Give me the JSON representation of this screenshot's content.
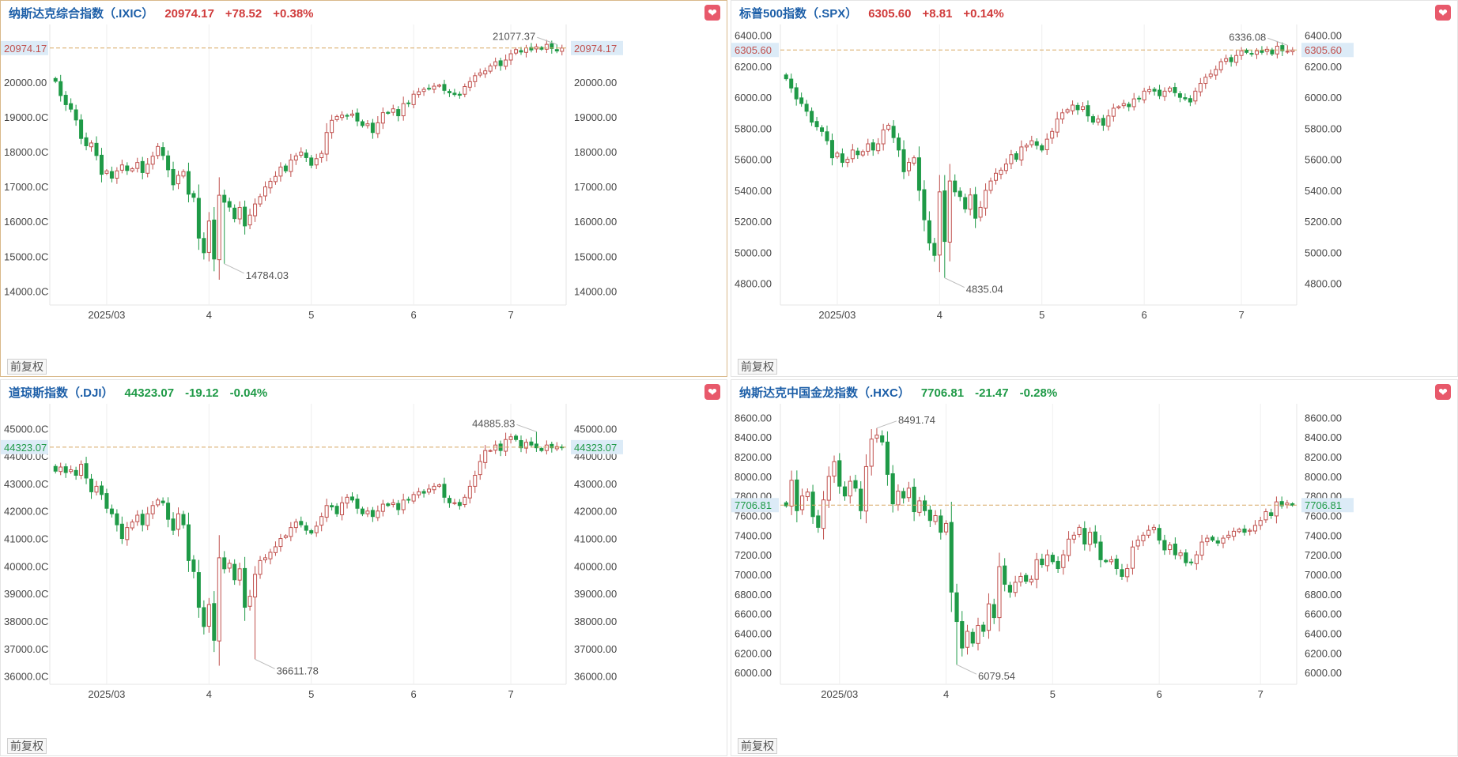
{
  "common": {
    "fuquan_label": "前复权"
  },
  "colors": {
    "up": "#c0504d",
    "down": "#1f9a47",
    "title": "#1d5fa8",
    "refline": "#d8a863"
  },
  "chart_data": [
    {
      "id": "ixic",
      "type": "candlestick",
      "name": "纳斯达克综合指数（.IXIC）",
      "price": "20974.17",
      "change": "+78.52",
      "pct": "+0.38%",
      "direction": "up",
      "last": 20974.17,
      "last_label": "20974.17",
      "ymin": 13600,
      "ymax": 21650,
      "yticks": [
        14000,
        15000,
        16000,
        17000,
        18000,
        19000,
        20000
      ],
      "yleft_labels": [
        "14000.0C",
        "15000.0C",
        "16000.0C",
        "17000.0C",
        "18000.0C",
        "19000.0C",
        "20000.00"
      ],
      "yright_labels": [
        "14000.00",
        "15000.00",
        "16000.00",
        "17000.00",
        "18000.00",
        "19000.00",
        "20000.00"
      ],
      "xlabels": [
        {
          "label": "2025/03",
          "idx": 10
        },
        {
          "label": "4",
          "idx": 30
        },
        {
          "label": "5",
          "idx": 50
        },
        {
          "label": "6",
          "idx": 70
        },
        {
          "label": "7",
          "idx": 89
        }
      ],
      "high_label": "21077.37",
      "high_value": 21077.37,
      "high_idx": 98,
      "low_label": "14784.03",
      "low_value": 14784.03,
      "low_idx": 33,
      "closes": [
        20020,
        19610,
        19350,
        19220,
        18910,
        18380,
        18170,
        18250,
        17890,
        17350,
        17450,
        17240,
        17450,
        17620,
        17460,
        17510,
        17690,
        17400,
        17640,
        17870,
        18150,
        17890,
        17480,
        17050,
        17320,
        17430,
        16780,
        16690,
        15520,
        15100,
        16010,
        14920,
        16750,
        16550,
        16410,
        16080,
        16400,
        15870,
        16180,
        16500,
        16710,
        16990,
        17150,
        17290,
        17560,
        17450,
        17760,
        17880,
        17990,
        17830,
        17610,
        17800,
        17950,
        18550,
        18900,
        19010,
        19050,
        19030,
        19080,
        18880,
        18750,
        18800,
        18550,
        18830,
        19120,
        19100,
        19230,
        19030,
        19380,
        19380,
        19650,
        19720,
        19790,
        19810,
        19880,
        19910,
        19760,
        19690,
        19640,
        19620,
        19870,
        20010,
        20180,
        20260,
        20320,
        20460,
        20580,
        20470,
        20630,
        20810,
        20930,
        20860,
        20980,
        20920,
        21010,
        20940,
        21080,
        20960,
        20890,
        20974
      ]
    },
    {
      "id": "spx",
      "type": "candlestick",
      "name": "标普500指数（.SPX）",
      "price": "6305.60",
      "change": "+8.81",
      "pct": "+0.14%",
      "direction": "up",
      "last": 6305.6,
      "last_label": "6305.60",
      "ymin": 4660,
      "ymax": 6470,
      "yticks": [
        4800,
        5000,
        5200,
        5400,
        5600,
        5800,
        6000,
        6200,
        6400
      ],
      "yleft_labels": [
        "4800.00",
        "5000.00",
        "5200.00",
        "5400.00",
        "5600.00",
        "5800.00",
        "6000.00",
        "6200.00",
        "6400.00"
      ],
      "yright_labels": [
        "4800.00",
        "5000.00",
        "5200.00",
        "5400.00",
        "5600.00",
        "5800.00",
        "6000.00",
        "6200.00",
        "6400.00"
      ],
      "xlabels": [
        {
          "label": "2025/03",
          "idx": 10
        },
        {
          "label": "4",
          "idx": 30
        },
        {
          "label": "5",
          "idx": 50
        },
        {
          "label": "6",
          "idx": 70
        },
        {
          "label": "7",
          "idx": 89
        }
      ],
      "high_label": "6336.08",
      "high_value": 6336.08,
      "high_idx": 98,
      "low_label": "4835.04",
      "low_value": 4835.04,
      "low_idx": 31,
      "closes": [
        6120,
        6060,
        5990,
        5960,
        5910,
        5840,
        5810,
        5780,
        5720,
        5610,
        5640,
        5580,
        5600,
        5660,
        5630,
        5650,
        5700,
        5660,
        5700,
        5790,
        5820,
        5740,
        5660,
        5520,
        5580,
        5610,
        5400,
        5210,
        5060,
        4980,
        5390,
        5070,
        5460,
        5390,
        5360,
        5280,
        5370,
        5220,
        5290,
        5400,
        5460,
        5510,
        5530,
        5570,
        5630,
        5600,
        5680,
        5690,
        5720,
        5690,
        5660,
        5730,
        5780,
        5860,
        5900,
        5920,
        5950,
        5920,
        5940,
        5880,
        5840,
        5860,
        5820,
        5880,
        5930,
        5940,
        5960,
        5940,
        5990,
        5990,
        6040,
        6050,
        6040,
        6010,
        6040,
        6060,
        6030,
        6000,
        5990,
        5970,
        6040,
        6090,
        6130,
        6150,
        6180,
        6230,
        6250,
        6230,
        6270,
        6300,
        6290,
        6280,
        6300,
        6290,
        6310,
        6280,
        6330,
        6300,
        6297,
        6305
      ]
    },
    {
      "id": "dji",
      "type": "candlestick",
      "name": "道琼斯指数（.DJI）",
      "price": "44323.07",
      "change": "-19.12",
      "pct": "-0.04%",
      "direction": "down",
      "last": 44323.07,
      "last_label": "44323.07",
      "ymin": 35700,
      "ymax": 45900,
      "yticks": [
        36000,
        37000,
        38000,
        39000,
        40000,
        41000,
        42000,
        43000,
        44000,
        45000
      ],
      "yleft_labels": [
        "36000.0C",
        "37000.0C",
        "38000.0C",
        "39000.0C",
        "40000.0C",
        "41000.0C",
        "42000.0C",
        "43000.0C",
        "44000.0C",
        "45000.0C"
      ],
      "yright_labels": [
        "36000.00",
        "37000.00",
        "38000.00",
        "39000.00",
        "40000.00",
        "41000.00",
        "42000.00",
        "43000.00",
        "44000.00",
        "45000.00"
      ],
      "xlabels": [
        {
          "label": "2025/03",
          "idx": 10
        },
        {
          "label": "4",
          "idx": 30
        },
        {
          "label": "5",
          "idx": 50
        },
        {
          "label": "6",
          "idx": 70
        },
        {
          "label": "7",
          "idx": 89
        }
      ],
      "high_label": "44885.83",
      "high_value": 44885.83,
      "high_idx": 94,
      "low_label": "36611.78",
      "low_value": 36611.78,
      "low_idx": 39,
      "closes": [
        43450,
        43600,
        43400,
        43500,
        43300,
        43700,
        43200,
        42700,
        42900,
        42600,
        42100,
        41900,
        41500,
        41000,
        41400,
        41600,
        41850,
        41500,
        41900,
        42200,
        42400,
        42300,
        41700,
        41300,
        41900,
        41500,
        40200,
        39800,
        38500,
        37800,
        38600,
        37300,
        40300,
        39900,
        40100,
        39500,
        39900,
        38500,
        38900,
        39700,
        40200,
        40300,
        40500,
        40700,
        41000,
        41100,
        41400,
        41600,
        41500,
        41300,
        41200,
        41450,
        41800,
        42200,
        42150,
        41900,
        42300,
        42500,
        42400,
        42100,
        41900,
        42000,
        41800,
        42000,
        42250,
        42200,
        42300,
        42050,
        42400,
        42400,
        42600,
        42700,
        42650,
        42800,
        42900,
        42950,
        42500,
        42300,
        42300,
        42200,
        42500,
        42900,
        43300,
        43800,
        44200,
        44200,
        44400,
        44200,
        44600,
        44700,
        44600,
        44300,
        44500,
        44400,
        44300,
        44200,
        44400,
        44300,
        44342,
        44323
      ]
    },
    {
      "id": "hxc",
      "type": "candlestick",
      "name": "纳斯达克中国金龙指数（.HXC）",
      "price": "7706.81",
      "change": "-21.47",
      "pct": "-0.28%",
      "direction": "down",
      "last": 7706.81,
      "last_label": "7706.81",
      "ymin": 5880,
      "ymax": 8740,
      "yticks": [
        6000,
        6200,
        6400,
        6600,
        6800,
        7000,
        7200,
        7400,
        7600,
        7800,
        8000,
        8200,
        8400,
        8600
      ],
      "yleft_labels": [
        "6000.00",
        "6200.00",
        "6400.00",
        "6600.00",
        "6800.00",
        "7000.00",
        "7200.00",
        "7400.00",
        "7600.00",
        "7800.00",
        "8000.00",
        "8200.00",
        "8400.00",
        "8600.00"
      ],
      "yright_labels": [
        "6000.00",
        "6200.00",
        "6400.00",
        "6600.00",
        "6800.00",
        "7000.00",
        "7200.00",
        "7400.00",
        "7600.00",
        "7800.00",
        "8000.00",
        "8200.00",
        "8400.00",
        "8600.00"
      ],
      "xlabels": [
        {
          "label": "2025/03",
          "idx": 10
        },
        {
          "label": "4",
          "idx": 30
        },
        {
          "label": "5",
          "idx": 50
        },
        {
          "label": "6",
          "idx": 70
        },
        {
          "label": "7",
          "idx": 89
        }
      ],
      "high_label": "8491.74",
      "high_value": 8491.74,
      "high_idx": 17,
      "low_label": "6079.54",
      "low_value": 6079.54,
      "low_idx": 32,
      "closes": [
        7700,
        7960,
        7650,
        7800,
        7840,
        7590,
        7480,
        7760,
        8000,
        8150,
        7900,
        7800,
        7950,
        7880,
        7650,
        8100,
        8380,
        8420,
        8350,
        8020,
        7720,
        7850,
        7780,
        7880,
        7640,
        7750,
        7650,
        7550,
        7600,
        7430,
        7520,
        6820,
        6520,
        6250,
        6420,
        6300,
        6480,
        6420,
        6700,
        6560,
        7080,
        6900,
        6820,
        6920,
        6980,
        6930,
        6950,
        7150,
        7100,
        7200,
        7130,
        7060,
        7200,
        7360,
        7400,
        7480,
        7310,
        7430,
        7320,
        7150,
        7130,
        7150,
        7060,
        6980,
        7060,
        7280,
        7350,
        7400,
        7450,
        7480,
        7350,
        7250,
        7300,
        7200,
        7220,
        7120,
        7120,
        7200,
        7330,
        7370,
        7350,
        7320,
        7370,
        7400,
        7440,
        7460,
        7430,
        7450,
        7500,
        7550,
        7640,
        7600,
        7740,
        7700,
        7728,
        7706
      ]
    }
  ]
}
